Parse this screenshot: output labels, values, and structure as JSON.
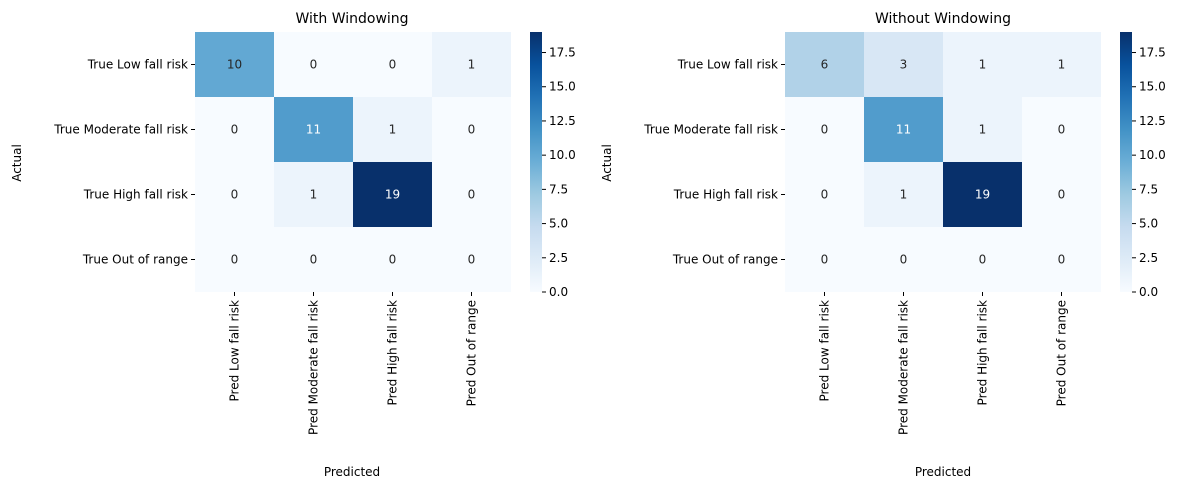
{
  "chart_data": [
    {
      "type": "heatmap",
      "title": "With Windowing",
      "xlabel": "Predicted",
      "ylabel": "Actual",
      "x_categories": [
        "Pred Low fall risk",
        "Pred Moderate fall risk",
        "Pred High fall risk",
        "Pred Out of range"
      ],
      "y_categories": [
        "True Low fall risk",
        "True Moderate fall risk",
        "True High fall risk",
        "True Out of range"
      ],
      "values": [
        [
          10,
          0,
          0,
          1
        ],
        [
          0,
          11,
          1,
          0
        ],
        [
          0,
          1,
          19,
          0
        ],
        [
          0,
          0,
          0,
          0
        ]
      ],
      "colorbar": {
        "min": 0,
        "max": 19,
        "ticks": [
          "0.0",
          "2.5",
          "5.0",
          "7.5",
          "10.0",
          "12.5",
          "15.0",
          "17.5"
        ]
      },
      "colormap": "Blues"
    },
    {
      "type": "heatmap",
      "title": "Without Windowing",
      "xlabel": "Predicted",
      "ylabel": "Actual",
      "x_categories": [
        "Pred Low fall risk",
        "Pred Moderate fall risk",
        "Pred High fall risk",
        "Pred Out of range"
      ],
      "y_categories": [
        "True Low fall risk",
        "True Moderate fall risk",
        "True High fall risk",
        "True Out of range"
      ],
      "values": [
        [
          6,
          3,
          1,
          1
        ],
        [
          0,
          11,
          1,
          0
        ],
        [
          0,
          1,
          19,
          0
        ],
        [
          0,
          0,
          0,
          0
        ]
      ],
      "colorbar": {
        "min": 0,
        "max": 19,
        "ticks": [
          "0.0",
          "2.5",
          "5.0",
          "7.5",
          "10.0",
          "12.5",
          "15.0",
          "17.5"
        ]
      },
      "colormap": "Blues"
    }
  ]
}
